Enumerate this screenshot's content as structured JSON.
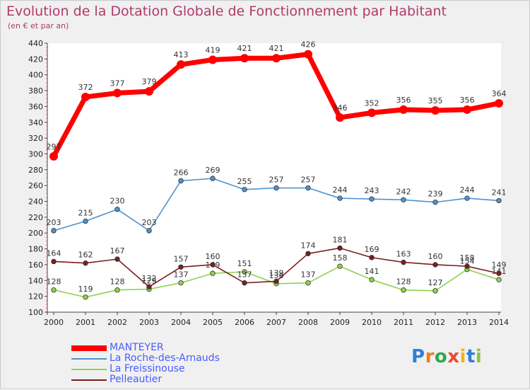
{
  "title": "Evolution de la Dotation Globale de Fonctionnement par Habitant",
  "subtitle": "(en € et par an)",
  "brand": "Proxiti",
  "colors": {
    "title": "#b03a6a",
    "legend_text": "#4a5cff",
    "background": "#f0f0f0"
  },
  "chart_data": {
    "type": "line",
    "title": "Evolution de la Dotation Globale de Fonctionnement par Habitant",
    "subtitle": "(en € et par an)",
    "xlabel": "",
    "ylabel": "",
    "ylim": [
      100,
      440
    ],
    "y_major_step": 20,
    "grid": false,
    "legend_position": "bottom-left",
    "categories": [
      "2000",
      "2001",
      "2002",
      "2003",
      "2004",
      "2005",
      "2006",
      "2007",
      "2008",
      "2009",
      "2010",
      "2011",
      "2012",
      "2013",
      "2014"
    ],
    "series": [
      {
        "name": "MANTEYER",
        "color": "#ff0000",
        "values": [
          297,
          372,
          377,
          379,
          413,
          419,
          421,
          421,
          426,
          346,
          352,
          356,
          355,
          356,
          364
        ],
        "labels": [
          "297",
          "372",
          "377",
          "379",
          "413",
          "419",
          "421",
          "421",
          "426",
          "346",
          "352",
          "356",
          "355",
          "356",
          "364"
        ]
      },
      {
        "name": "La Roche-des-Arnauds",
        "color": "#4f93d0",
        "values": [
          203,
          215,
          230,
          203,
          266,
          269,
          255,
          257,
          257,
          244,
          243,
          242,
          239,
          244,
          241
        ],
        "labels": [
          "203",
          "215",
          "230",
          "203",
          "266",
          "269",
          "255",
          "257",
          "257",
          "244",
          "243",
          "242",
          "239",
          "244",
          "241"
        ]
      },
      {
        "name": "La Freissinouse",
        "color": "#8fd24e",
        "values": [
          128,
          119,
          128,
          129,
          137,
          149,
          151,
          136,
          137,
          158,
          141,
          128,
          127,
          154,
          141
        ],
        "labels": [
          "128",
          "119",
          "128",
          "129",
          "137",
          "149",
          "151",
          "136",
          "137",
          "158",
          "141",
          "128",
          "127",
          "154",
          "141"
        ]
      },
      {
        "name": "Pelleautier",
        "color": "#7a1f1f",
        "values": [
          164,
          162,
          167,
          132,
          157,
          160,
          137,
          139,
          174,
          181,
          169,
          163,
          160,
          158,
          149
        ],
        "labels": [
          "164",
          "162",
          "167",
          "132",
          "157",
          "160",
          "137",
          "139",
          "174",
          "181",
          "169",
          "163",
          "160",
          "158",
          "149"
        ]
      }
    ]
  }
}
